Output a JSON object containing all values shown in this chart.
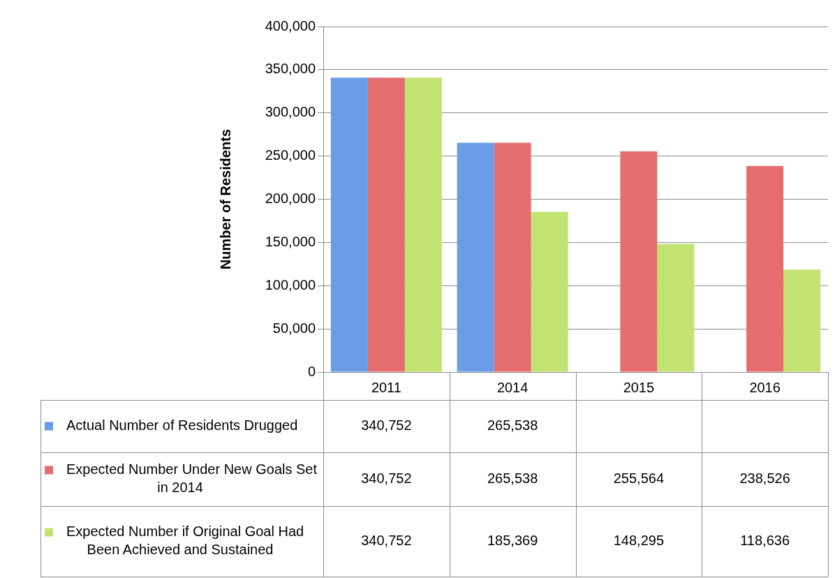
{
  "chart_data": {
    "type": "bar",
    "ylabel": "Number of Residents",
    "categories": [
      "2011",
      "2014",
      "2015",
      "2016"
    ],
    "series": [
      {
        "name": "Actual Number of Residents Drugged",
        "color": "#6a9de6",
        "values": [
          340752,
          265538,
          null,
          null
        ],
        "value_labels": [
          "340,752",
          "265,538",
          null,
          null
        ]
      },
      {
        "name": "Expected Number Under New Goals Set in 2014",
        "color": "#e66d6d",
        "values": [
          340752,
          265538,
          255564,
          238526
        ],
        "value_labels": [
          "340,752",
          "265,538",
          "255,564",
          "238,526"
        ]
      },
      {
        "name": "Expected Number if Original Goal Had Been Achieved and Sustained",
        "color": "#c2e272",
        "values": [
          340752,
          185369,
          148295,
          118636
        ],
        "value_labels": [
          "340,752",
          "185,369",
          "148,295",
          "118,636"
        ]
      }
    ],
    "ylim": [
      0,
      400000
    ],
    "yticks": [
      0,
      {
        "value": 50000,
        "label": "50,000"
      },
      {
        "value": 100000,
        "label": "100,000"
      },
      {
        "value": 150000,
        "label": "150,000"
      },
      {
        "value": 200000,
        "label": "200,000"
      },
      {
        "value": 250000,
        "label": "250,000"
      },
      {
        "value": 300000,
        "label": "300,000"
      },
      {
        "value": 350000,
        "label": "350,000"
      },
      {
        "value": 400000,
        "label": "400,000"
      }
    ],
    "grid": "y",
    "legend": "bottom left"
  }
}
